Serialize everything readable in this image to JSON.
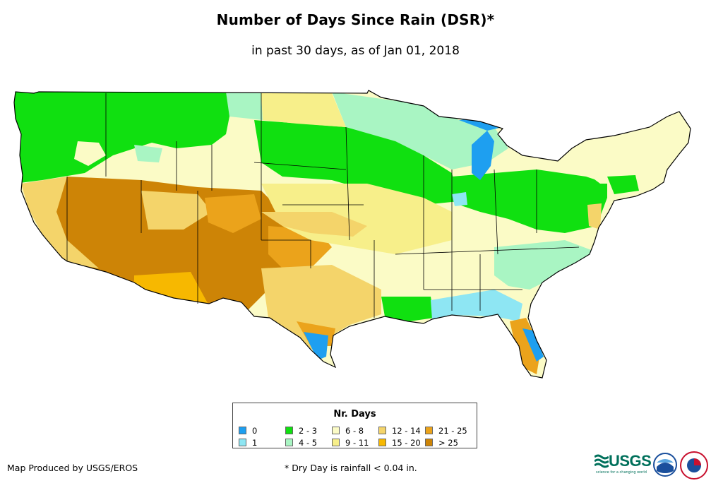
{
  "title": "Number of Days Since Rain (DSR)*",
  "subtitle": "in past 30 days, as of Jan 01, 2018",
  "legend": {
    "title": "Nr. Days",
    "items": [
      {
        "label": "0",
        "color": "#1e9ff0"
      },
      {
        "label": "1",
        "color": "#8ee6f3"
      },
      {
        "label": "2 - 3",
        "color": "#10e010"
      },
      {
        "label": "4 - 5",
        "color": "#a9f5c3"
      },
      {
        "label": "6 - 8",
        "color": "#fbfbc6"
      },
      {
        "label": "9 - 11",
        "color": "#f7ef8a"
      },
      {
        "label": "12 - 14",
        "color": "#f4d46a"
      },
      {
        "label": "15 - 20",
        "color": "#f7b800"
      },
      {
        "label": "21 - 25",
        "color": "#eba31b"
      },
      {
        "label": "> 25",
        "color": "#cd8406"
      }
    ]
  },
  "footer": {
    "producer": "Map Produced by USGS/EROS",
    "note": "* Dry Day is rainfall < 0.04 in."
  },
  "logos": {
    "usgs": "USGS",
    "usgs_tagline": "science for a changing world",
    "noaa": "noaa",
    "nws": "national-weather-service-logo"
  }
}
